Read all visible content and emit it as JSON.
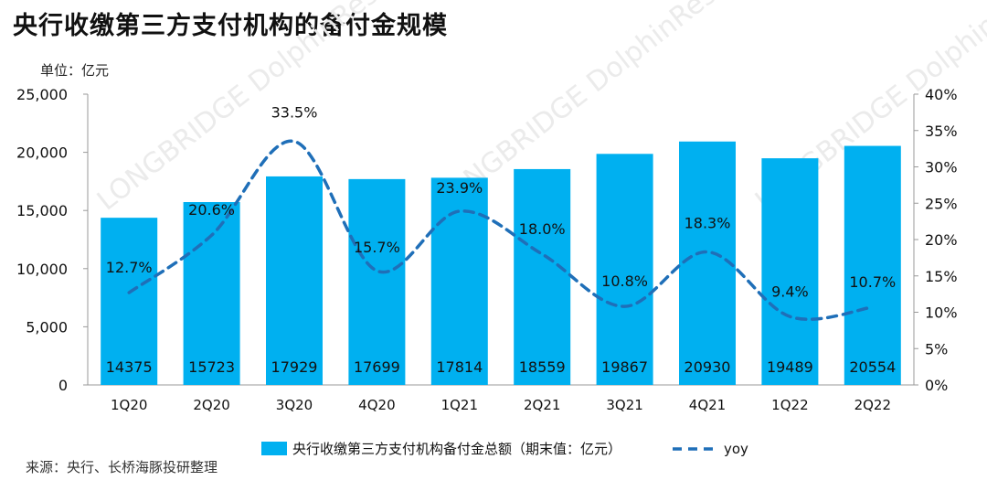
{
  "title": "央行收缴第三方支付机构的备付金规模",
  "unit_label": "单位：亿元",
  "source": "来源：央行、长桥海豚投研整理",
  "watermark": "LONGBRIDGE DolphinResearch",
  "colors": {
    "bar": "#00b0f0",
    "line": "#1f6fb8",
    "axis": "#999999"
  },
  "chart_data": {
    "type": "bar",
    "categories": [
      "1Q20",
      "2Q20",
      "3Q20",
      "4Q20",
      "1Q21",
      "2Q21",
      "3Q21",
      "4Q21",
      "1Q22",
      "2Q22"
    ],
    "series": [
      {
        "name": "央行收缴第三方支付机构备付金总额（期末值：亿元）",
        "type": "bar",
        "axis": "left",
        "values": [
          14375,
          15723,
          17929,
          17699,
          17814,
          18559,
          19867,
          20930,
          19489,
          20554
        ]
      },
      {
        "name": "yoy",
        "type": "line",
        "style": "dashed",
        "axis": "right",
        "values": [
          12.7,
          20.6,
          33.5,
          15.7,
          23.9,
          18.0,
          10.8,
          18.3,
          9.4,
          10.7
        ]
      }
    ],
    "bar_labels": [
      "14375",
      "15723",
      "17929",
      "17699",
      "17814",
      "18559",
      "19867",
      "20930",
      "19489",
      "20554"
    ],
    "line_labels": [
      "12.7%",
      "20.6%",
      "33.5%",
      "15.7%",
      "23.9%",
      "18.0%",
      "10.8%",
      "18.3%",
      "9.4%",
      "10.7%"
    ],
    "ylim_left": [
      0,
      25000
    ],
    "ylim_right": [
      0,
      40
    ],
    "yticks_left": [
      "0",
      "5,000",
      "10,000",
      "15,000",
      "20,000",
      "25,000"
    ],
    "yticks_right": [
      "0%",
      "5%",
      "10%",
      "15%",
      "20%",
      "25%",
      "30%",
      "35%",
      "40%"
    ],
    "legend": [
      "央行收缴第三方支付机构备付金总额（期末值：亿元）",
      "yoy"
    ],
    "legend_position": "bottom",
    "grid": false
  }
}
